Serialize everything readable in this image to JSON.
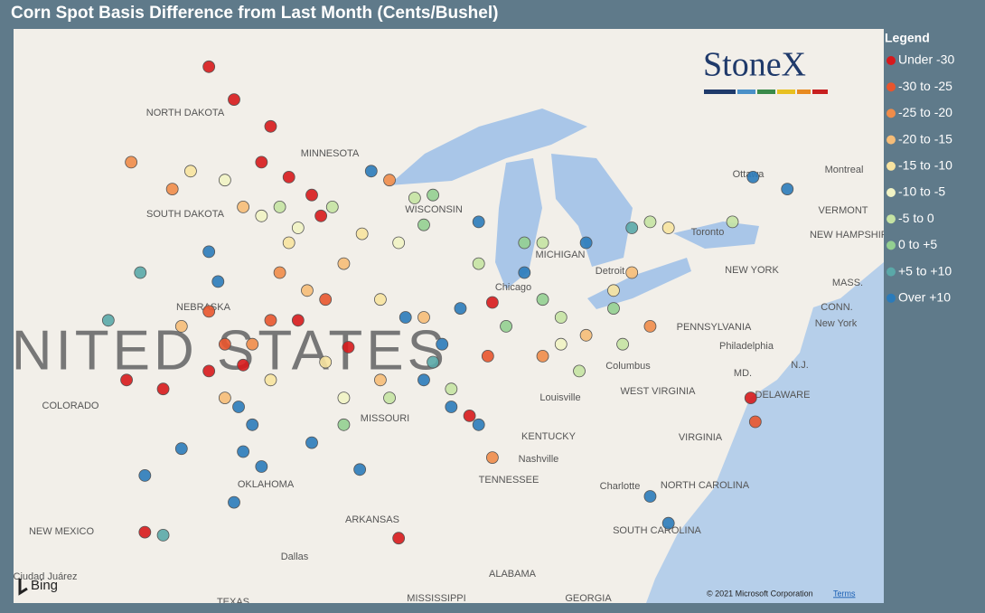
{
  "title": "Corn Spot Basis Difference from Last Month (Cents/Bushel)",
  "legend": {
    "title": "Legend",
    "items": [
      {
        "label": "Under -30",
        "color": "#d7191c"
      },
      {
        "label": "-30 to -25",
        "color": "#e8552d"
      },
      {
        "label": "-25 to -20",
        "color": "#f08c4a"
      },
      {
        "label": "-20 to -15",
        "color": "#f6bd78"
      },
      {
        "label": "-15 to -10",
        "color": "#f7e3a0"
      },
      {
        "label": "-10 to -5",
        "color": "#f1f3c4"
      },
      {
        "label": "-5 to 0",
        "color": "#c5e3a3"
      },
      {
        "label": "0 to +5",
        "color": "#93cf91"
      },
      {
        "label": "+5 to +10",
        "color": "#5aa8a8"
      },
      {
        "label": "Over +10",
        "color": "#2b7bba"
      }
    ]
  },
  "logo": "StoneX",
  "map_labels": [
    "NORTH DAKOTA",
    "MINNESOTA",
    "SOUTH DAKOTA",
    "WISCONSIN",
    "MICHIGAN",
    "NEBRASKA",
    "Chicago",
    "Detroit",
    "NEW YORK",
    "PENNSYLVANIA",
    "New York",
    "Philadelphia",
    "COLORADO",
    "MISSOURI",
    "Columbus",
    "Louisville",
    "WEST VIRGINIA",
    "MD.",
    "DELAWARE",
    "KENTUCKY",
    "VIRGINIA",
    "Nashville",
    "TENNESSEE",
    "OKLAHOMA",
    "NORTH CAROLINA",
    "Charlotte",
    "ARKANSAS",
    "SOUTH CAROLINA",
    "NEW MEXICO",
    "Dallas",
    "ALABAMA",
    "Ciudad Juárez",
    "TEXAS",
    "MISSISSIPPI",
    "GEORGIA",
    "Montreal",
    "Ottawa",
    "Toronto",
    "VERMONT",
    "NEW HAMPSHIRE",
    "MASS.",
    "CONN.",
    "N.J.",
    "UNITED STATES"
  ],
  "points": [
    [
      -100.4,
      49.3,
      0
    ],
    [
      -99.3,
      48.2,
      0
    ],
    [
      -97.7,
      47.3,
      0
    ],
    [
      -98.1,
      46.1,
      0
    ],
    [
      -96.9,
      45.6,
      0
    ],
    [
      -95.9,
      45.0,
      0
    ],
    [
      -95.5,
      44.3,
      0
    ],
    [
      -96.5,
      40.8,
      0
    ],
    [
      -98.9,
      39.3,
      0
    ],
    [
      -100.4,
      39.1,
      0
    ],
    [
      -104.0,
      38.8,
      0
    ],
    [
      -102.4,
      38.5,
      0
    ],
    [
      -94.3,
      39.9,
      0
    ],
    [
      -88.0,
      41.4,
      0
    ],
    [
      -103.2,
      33.7,
      0
    ],
    [
      -92.1,
      33.5,
      0
    ],
    [
      -76.7,
      38.2,
      0
    ],
    [
      -89.0,
      37.6,
      0
    ],
    [
      -97.7,
      40.8,
      1
    ],
    [
      -99.7,
      40.0,
      1
    ],
    [
      -95.3,
      41.5,
      1
    ],
    [
      -88.2,
      39.6,
      1
    ],
    [
      -100.4,
      41.1,
      1
    ],
    [
      -76.5,
      37.4,
      1
    ],
    [
      -102.0,
      45.2,
      2
    ],
    [
      -103.8,
      46.1,
      2
    ],
    [
      -97.3,
      42.4,
      2
    ],
    [
      -92.5,
      45.5,
      2
    ],
    [
      -85.8,
      39.6,
      2
    ],
    [
      -81.1,
      40.6,
      2
    ],
    [
      -88.0,
      36.2,
      2
    ],
    [
      -98.5,
      40.0,
      2
    ],
    [
      -98.9,
      44.6,
      3
    ],
    [
      -94.5,
      42.7,
      3
    ],
    [
      -96.1,
      41.8,
      3
    ],
    [
      -101.6,
      40.6,
      3
    ],
    [
      -91.0,
      40.9,
      3
    ],
    [
      -83.9,
      40.3,
      3
    ],
    [
      -92.9,
      38.8,
      3
    ],
    [
      -99.7,
      38.2,
      3
    ],
    [
      -81.9,
      42.4,
      3
    ],
    [
      -96.9,
      43.4,
      4
    ],
    [
      -93.7,
      43.7,
      4
    ],
    [
      -92.9,
      41.5,
      4
    ],
    [
      -95.3,
      39.4,
      4
    ],
    [
      -97.7,
      38.8,
      4
    ],
    [
      -101.2,
      45.8,
      4
    ],
    [
      -82.7,
      41.8,
      4
    ],
    [
      -80.3,
      43.9,
      4
    ],
    [
      -99.7,
      45.5,
      5
    ],
    [
      -98.1,
      44.3,
      5
    ],
    [
      -92.1,
      43.4,
      5
    ],
    [
      -94.5,
      38.2,
      5
    ],
    [
      -85.0,
      40.0,
      5
    ],
    [
      -96.5,
      43.9,
      5
    ],
    [
      -97.3,
      44.6,
      6
    ],
    [
      -95.0,
      44.6,
      6
    ],
    [
      -91.4,
      44.9,
      6
    ],
    [
      -88.6,
      42.7,
      6
    ],
    [
      -85.8,
      43.4,
      6
    ],
    [
      -85.0,
      40.9,
      6
    ],
    [
      -82.3,
      40.0,
      6
    ],
    [
      -81.1,
      44.1,
      6
    ],
    [
      -77.5,
      44.1,
      6
    ],
    [
      -89.8,
      38.5,
      6
    ],
    [
      -92.5,
      38.2,
      6
    ],
    [
      -84.2,
      39.1,
      6
    ],
    [
      -90.6,
      45.0,
      7
    ],
    [
      -86.6,
      43.4,
      7
    ],
    [
      -85.8,
      41.5,
      7
    ],
    [
      -82.7,
      41.2,
      7
    ],
    [
      -87.4,
      40.6,
      7
    ],
    [
      -94.5,
      37.3,
      7
    ],
    [
      -91.0,
      44.0,
      7
    ],
    [
      -103.4,
      42.4,
      8
    ],
    [
      -104.8,
      40.8,
      8
    ],
    [
      -90.6,
      39.4,
      8
    ],
    [
      -81.9,
      43.9,
      8
    ],
    [
      -102.4,
      33.6,
      8
    ],
    [
      -98.5,
      37.3,
      9
    ],
    [
      -98.9,
      36.4,
      9
    ],
    [
      -98.1,
      35.9,
      9
    ],
    [
      -99.1,
      37.9,
      9
    ],
    [
      -103.2,
      35.6,
      9
    ],
    [
      -101.6,
      36.5,
      9
    ],
    [
      -99.3,
      34.7,
      9
    ],
    [
      -91.0,
      38.8,
      9
    ],
    [
      -90.2,
      40.0,
      9
    ],
    [
      -89.4,
      41.2,
      9
    ],
    [
      -91.8,
      40.9,
      9
    ],
    [
      -89.8,
      37.9,
      9
    ],
    [
      -88.6,
      37.3,
      9
    ],
    [
      -100.4,
      43.1,
      9
    ],
    [
      -100.0,
      42.1,
      9
    ],
    [
      -93.3,
      45.8,
      9
    ],
    [
      -83.9,
      43.4,
      9
    ],
    [
      -86.6,
      42.4,
      9
    ],
    [
      -76.6,
      45.6,
      9
    ],
    [
      -75.1,
      45.2,
      9
    ],
    [
      -80.3,
      34.0,
      9
    ],
    [
      -81.1,
      34.9,
      9
    ],
    [
      -93.8,
      35.8,
      9
    ],
    [
      -95.9,
      36.7,
      9
    ],
    [
      -88.6,
      44.1,
      9
    ]
  ],
  "attribution": "© 2021 Microsoft Corporation",
  "terms": "Terms",
  "bing": "Bing"
}
